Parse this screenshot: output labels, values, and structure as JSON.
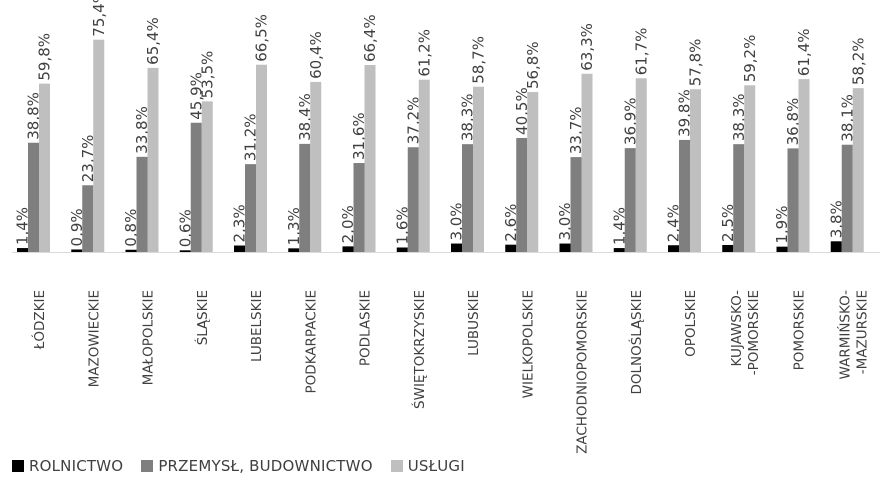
{
  "chart_data": {
    "type": "bar",
    "categories": [
      "ŁÓDZKIE",
      "MAZOWIECKIE",
      "MAŁOPOLSKIE",
      "ŚLĄSKIE",
      "LUBELSKIE",
      "PODKARPACKIE",
      "PODLASKIE",
      "ŚWIĘTOKRZYSKIE",
      "LUBUSKIE",
      "WIELKOPOLSKIE",
      "ZACHODNIOPOMORSKIE",
      "DOLNOŚLĄSKIE",
      "OPOLSKIE",
      "KUJAWSKO--POMORSKIE",
      "POMORSKIE",
      "WARMIŃSKO--MAZURSKIE"
    ],
    "category_lines": [
      [
        "ŁÓDZKIE"
      ],
      [
        "MAZOWIECKIE"
      ],
      [
        "MAŁOPOLSKIE"
      ],
      [
        "ŚLĄSKIE"
      ],
      [
        "LUBELSKIE"
      ],
      [
        "PODKARPACKIE"
      ],
      [
        "PODLASKIE"
      ],
      [
        "ŚWIĘTOKRZYSKIE"
      ],
      [
        "LUBUSKIE"
      ],
      [
        "WIELKOPOLSKIE"
      ],
      [
        "ZACHODNIOPOMORSKIE"
      ],
      [
        "DOLNOŚLĄSKIE"
      ],
      [
        "OPOLSKIE"
      ],
      [
        "KUJAWSKO-",
        "-POMORSKIE"
      ],
      [
        "POMORSKIE"
      ],
      [
        "WARMIŃSKO-",
        "-MAZURSKIE"
      ]
    ],
    "series": [
      {
        "name": "ROLNICTWO",
        "color": "#000000",
        "values": [
          1.4,
          0.9,
          0.8,
          0.6,
          2.3,
          1.3,
          2.0,
          1.6,
          3.0,
          2.6,
          3.0,
          1.4,
          2.4,
          2.5,
          1.9,
          3.8
        ],
        "labels": [
          "1,4%",
          "0,9%",
          "0,8%",
          "0,6%",
          "2,3%",
          "1,3%",
          "2,0%",
          "1,6%",
          "3,0%",
          "2,6%",
          "3,0%",
          "1,4%",
          "2,4%",
          "2,5%",
          "1,9%",
          "3,8%"
        ]
      },
      {
        "name": "PRZEMYSŁ, BUDOWNICTWO",
        "color": "#7f7f7f",
        "values": [
          38.8,
          23.7,
          33.8,
          45.9,
          31.2,
          38.4,
          31.6,
          37.2,
          38.3,
          40.5,
          33.7,
          36.9,
          39.8,
          38.3,
          36.8,
          38.1
        ],
        "labels": [
          "38,8%",
          "23,7%",
          "33,8%",
          "45,9%",
          "31,2%",
          "38,4%",
          "31,6%",
          "37,2%",
          "38,3%",
          "40,5%",
          "33,7%",
          "36,9%",
          "39,8%",
          "38,3%",
          "36,8%",
          "38,1%"
        ]
      },
      {
        "name": "USŁUGI",
        "color": "#bfbfbf",
        "values": [
          59.8,
          75.4,
          65.4,
          53.5,
          66.5,
          60.4,
          66.4,
          61.2,
          58.7,
          56.8,
          63.3,
          61.7,
          57.8,
          59.2,
          61.4,
          58.2
        ],
        "labels": [
          "59,8%",
          "75,4%",
          "65,4%",
          "53,5%",
          "66,5%",
          "60,4%",
          "66,4%",
          "61,2%",
          "58,7%",
          "56,8%",
          "63,3%",
          "61,7%",
          "57,8%",
          "59,2%",
          "61,4%",
          "58,2%"
        ]
      }
    ],
    "ylim": [
      0,
      76
    ],
    "grid": false,
    "legend_position": "bottom-left",
    "title": "",
    "xlabel": "",
    "ylabel": ""
  }
}
